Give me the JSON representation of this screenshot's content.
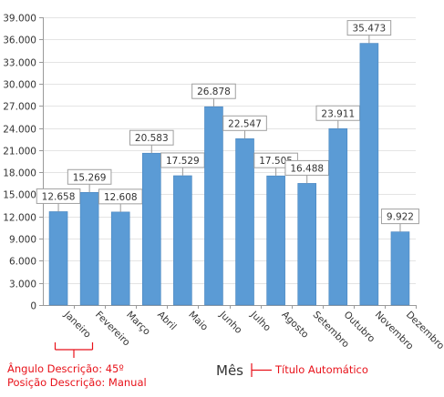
{
  "chart_data": {
    "type": "bar",
    "categories": [
      "Janeiro",
      "Fevereiro",
      "Março",
      "Abril",
      "Maio",
      "Junho",
      "Julho",
      "Agosto",
      "Setembro",
      "Outubro",
      "Novembro",
      "Dezembro"
    ],
    "values": [
      12658,
      15269,
      12608,
      20583,
      17529,
      26878,
      22547,
      17505,
      16488,
      23911,
      35473,
      9922
    ],
    "value_labels": [
      "12.658",
      "15.269",
      "12.608",
      "20.583",
      "17.529",
      "26.878",
      "22.547",
      "17.505",
      "16.488",
      "23.911",
      "35.473",
      "9.922"
    ],
    "y_ticks": [
      0,
      3000,
      6000,
      9000,
      12000,
      15000,
      18000,
      21000,
      24000,
      27000,
      30000,
      33000,
      36000,
      39000
    ],
    "y_tick_labels": [
      "0",
      "3.000",
      "6.000",
      "9.000",
      "12.000",
      "15.000",
      "18.000",
      "21.000",
      "24.000",
      "27.000",
      "30.000",
      "33.000",
      "36.000",
      "39.000"
    ],
    "ylim": [
      0,
      39000
    ],
    "xlabel": "Mês",
    "ylabel": "",
    "title": "",
    "grid": true,
    "bar_color": "#5b9bd5",
    "label_angle": 45
  },
  "annotations": {
    "angle_note": "Ângulo Descrição: 45º",
    "position_note": "Posição Descrição: Manual",
    "auto_title_note": "Título Automático",
    "color": "#e8121a"
  }
}
